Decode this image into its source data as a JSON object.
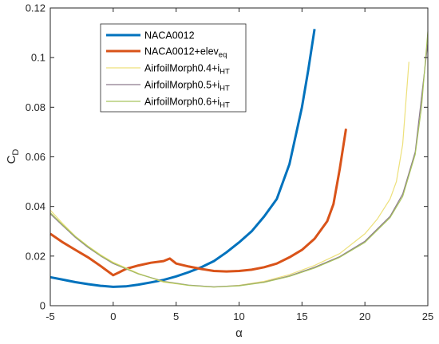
{
  "chart_data": {
    "type": "line",
    "xlabel": "α",
    "ylabel": {
      "main": "C",
      "sub": "D"
    },
    "xlim": [
      -5,
      25
    ],
    "ylim": [
      0,
      0.12
    ],
    "xticks": [
      -5,
      0,
      5,
      10,
      15,
      20,
      25
    ],
    "yticks": [
      0,
      0.02,
      0.04,
      0.06,
      0.08,
      0.1,
      0.12
    ],
    "xtick_labels": [
      "-5",
      "0",
      "5",
      "10",
      "15",
      "20",
      "25"
    ],
    "ytick_labels": [
      "0",
      "0.02",
      "0.04",
      "0.06",
      "0.08",
      "0.1",
      "0.12"
    ],
    "grid": false,
    "box": true,
    "legend_position": "top-right",
    "series": [
      {
        "name": "NACA0012",
        "name_parts": [
          "NACA0012",
          ""
        ],
        "color": "#0072BD",
        "width": 3,
        "points": [
          [
            -5,
            0.0115
          ],
          [
            -4,
            0.0105
          ],
          [
            -3,
            0.0095
          ],
          [
            -2,
            0.0087
          ],
          [
            -1,
            0.008
          ],
          [
            0,
            0.0076
          ],
          [
            1,
            0.0078
          ],
          [
            2,
            0.0085
          ],
          [
            3,
            0.0094
          ],
          [
            4,
            0.0104
          ],
          [
            5,
            0.0118
          ],
          [
            6,
            0.0135
          ],
          [
            7,
            0.0155
          ],
          [
            8,
            0.018
          ],
          [
            9,
            0.0215
          ],
          [
            10,
            0.0255
          ],
          [
            11,
            0.03
          ],
          [
            12,
            0.036
          ],
          [
            13,
            0.043
          ],
          [
            14,
            0.057
          ],
          [
            15,
            0.08
          ],
          [
            15.5,
            0.095
          ],
          [
            16,
            0.1115
          ]
        ]
      },
      {
        "name": "NACA0012+elev_eq",
        "name_parts": [
          "NACA0012+elev",
          "eq"
        ],
        "color": "#D95319",
        "width": 3,
        "points": [
          [
            -5,
            0.029
          ],
          [
            -4,
            0.0255
          ],
          [
            -3,
            0.0225
          ],
          [
            -2,
            0.0195
          ],
          [
            -1,
            0.016
          ],
          [
            0,
            0.0123
          ],
          [
            0.5,
            0.0135
          ],
          [
            1,
            0.0148
          ],
          [
            2,
            0.0162
          ],
          [
            3,
            0.0173
          ],
          [
            4,
            0.018
          ],
          [
            4.5,
            0.019
          ],
          [
            5,
            0.017
          ],
          [
            6,
            0.0158
          ],
          [
            7,
            0.0148
          ],
          [
            8,
            0.014
          ],
          [
            9,
            0.0138
          ],
          [
            10,
            0.014
          ],
          [
            11,
            0.0145
          ],
          [
            12,
            0.0155
          ],
          [
            13,
            0.017
          ],
          [
            14,
            0.0195
          ],
          [
            15,
            0.0225
          ],
          [
            16,
            0.027
          ],
          [
            17,
            0.034
          ],
          [
            17.5,
            0.041
          ],
          [
            18,
            0.055
          ],
          [
            18.5,
            0.0713
          ]
        ]
      },
      {
        "name": "AirfoilMorph0.4+i_HT",
        "name_parts": [
          "AirfoilMorph0.4+i",
          "HT"
        ],
        "color": "#EDE07A",
        "width": 1.2,
        "points": [
          [
            -5,
            0.0385
          ],
          [
            -4,
            0.033
          ],
          [
            -3,
            0.028
          ],
          [
            -2,
            0.024
          ],
          [
            -1,
            0.0205
          ],
          [
            0,
            0.0175
          ],
          [
            2,
            0.013
          ],
          [
            4,
            0.0095
          ],
          [
            6,
            0.0082
          ],
          [
            8,
            0.0075
          ],
          [
            10,
            0.0082
          ],
          [
            12,
            0.0098
          ],
          [
            14,
            0.0125
          ],
          [
            16,
            0.0162
          ],
          [
            18,
            0.021
          ],
          [
            20,
            0.029
          ],
          [
            21,
            0.035
          ],
          [
            22,
            0.043
          ],
          [
            22.5,
            0.05
          ],
          [
            23,
            0.065
          ],
          [
            23.5,
            0.0983
          ]
        ]
      },
      {
        "name": "AirfoilMorph0.5+i_HT",
        "name_parts": [
          "AirfoilMorph0.5+i",
          "HT"
        ],
        "color": "#8C7A8C",
        "width": 1.2,
        "points": [
          [
            -5,
            0.037
          ],
          [
            -4,
            0.0322
          ],
          [
            -3,
            0.0275
          ],
          [
            -2,
            0.0235
          ],
          [
            -1,
            0.02
          ],
          [
            0,
            0.017
          ],
          [
            2,
            0.0128
          ],
          [
            4,
            0.0098
          ],
          [
            6,
            0.0083
          ],
          [
            8,
            0.0076
          ],
          [
            10,
            0.0081
          ],
          [
            12,
            0.0095
          ],
          [
            14,
            0.012
          ],
          [
            16,
            0.0155
          ],
          [
            18,
            0.0198
          ],
          [
            20,
            0.026
          ],
          [
            22,
            0.036
          ],
          [
            23,
            0.045
          ],
          [
            24,
            0.062
          ],
          [
            25,
            0.106
          ]
        ]
      },
      {
        "name": "AirfoilMorph0.6+i_HT",
        "name_parts": [
          "AirfoilMorph0.6+i",
          "HT"
        ],
        "color": "#A8C45E",
        "width": 1.2,
        "points": [
          [
            -5,
            0.0375
          ],
          [
            -4,
            0.0325
          ],
          [
            -3,
            0.0278
          ],
          [
            -2,
            0.0238
          ],
          [
            -1,
            0.0202
          ],
          [
            0,
            0.0172
          ],
          [
            2,
            0.0128
          ],
          [
            4,
            0.0097
          ],
          [
            6,
            0.0082
          ],
          [
            8,
            0.0075
          ],
          [
            10,
            0.008
          ],
          [
            12,
            0.0094
          ],
          [
            14,
            0.0118
          ],
          [
            16,
            0.0152
          ],
          [
            18,
            0.0195
          ],
          [
            20,
            0.0255
          ],
          [
            22,
            0.0355
          ],
          [
            23,
            0.044
          ],
          [
            24,
            0.061
          ],
          [
            24.5,
            0.08
          ],
          [
            25,
            0.1105
          ]
        ]
      }
    ]
  }
}
